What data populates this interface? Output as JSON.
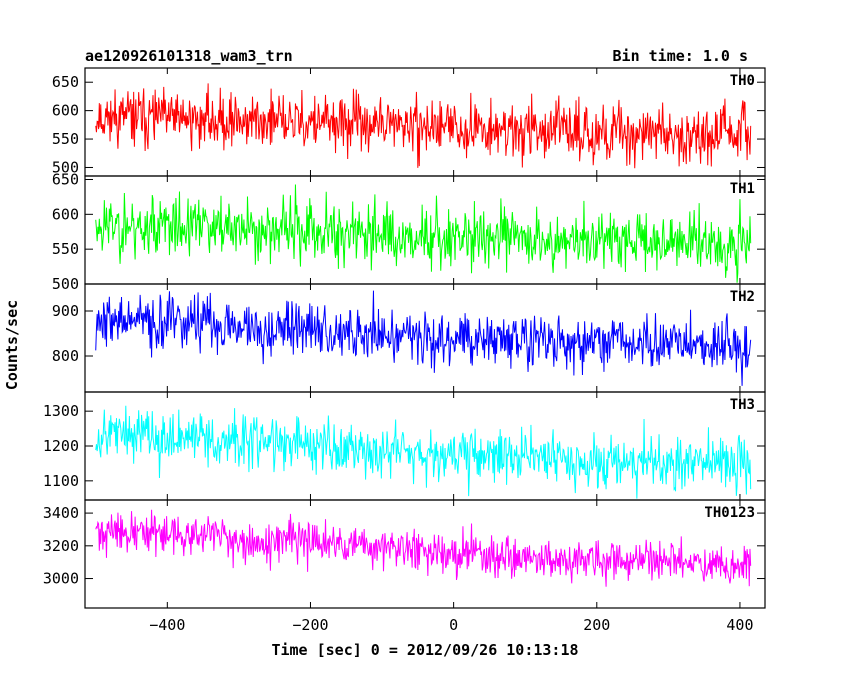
{
  "header": {
    "title": "ae120926101318_wam3_trn",
    "bin_time": "Bin time: 1.0 s"
  },
  "chart_data": {
    "type": "line",
    "xlabel": "Time [sec] 0 = 2012/09/26 10:13:18",
    "ylabel": "Counts/sec",
    "xlim": [
      -515,
      435
    ],
    "x_ticks": [
      -400,
      -200,
      0,
      200,
      400
    ],
    "x_tick_labels": [
      "−400",
      "−200",
      "0",
      "200",
      "400"
    ],
    "x_range": [
      -500,
      415
    ],
    "grid": false,
    "panels": [
      {
        "name": "TH0",
        "color": "#ff0000",
        "ylim": [
          485,
          675
        ],
        "y_ticks": [
          500,
          550,
          600,
          650
        ],
        "y_tick_labels": [
          "500",
          "550",
          "600",
          "650"
        ],
        "trend": [
          [
            -500,
            590
          ],
          [
            -300,
            583
          ],
          [
            0,
            570
          ],
          [
            200,
            562
          ],
          [
            415,
            558
          ]
        ],
        "noise": 24,
        "seed": 11
      },
      {
        "name": "TH1",
        "color": "#00ff00",
        "ylim": [
          500,
          655
        ],
        "y_ticks": [
          500,
          550,
          600,
          650
        ],
        "y_tick_labels": [
          "500",
          "550",
          "600",
          "650"
        ],
        "trend": [
          [
            -500,
            585
          ],
          [
            -300,
            580
          ],
          [
            0,
            568
          ],
          [
            200,
            563
          ],
          [
            415,
            560
          ]
        ],
        "noise": 22,
        "seed": 23
      },
      {
        "name": "TH2",
        "color": "#0000ff",
        "ylim": [
          720,
          960
        ],
        "y_ticks": [
          800,
          900
        ],
        "y_tick_labels": [
          "800",
          "900"
        ],
        "trend": [
          [
            -500,
            880
          ],
          [
            -300,
            868
          ],
          [
            0,
            840
          ],
          [
            200,
            830
          ],
          [
            415,
            820
          ]
        ],
        "noise": 30,
        "seed": 37
      },
      {
        "name": "TH3",
        "color": "#00ffff",
        "ylim": [
          1045,
          1355
        ],
        "y_ticks": [
          1100,
          1200,
          1300
        ],
        "y_tick_labels": [
          "1100",
          "1200",
          "1300"
        ],
        "trend": [
          [
            -500,
            1240
          ],
          [
            -300,
            1215
          ],
          [
            0,
            1180
          ],
          [
            200,
            1160
          ],
          [
            415,
            1145
          ]
        ],
        "noise": 38,
        "seed": 53
      },
      {
        "name": "TH0123",
        "color": "#ff00ff",
        "ylim": [
          2820,
          3480
        ],
        "y_ticks": [
          3000,
          3200,
          3400
        ],
        "y_tick_labels": [
          "3000",
          "3200",
          "3400"
        ],
        "trend": [
          [
            -500,
            3290
          ],
          [
            -300,
            3245
          ],
          [
            0,
            3160
          ],
          [
            200,
            3110
          ],
          [
            415,
            3080
          ]
        ],
        "noise": 62,
        "seed": 71
      }
    ]
  }
}
